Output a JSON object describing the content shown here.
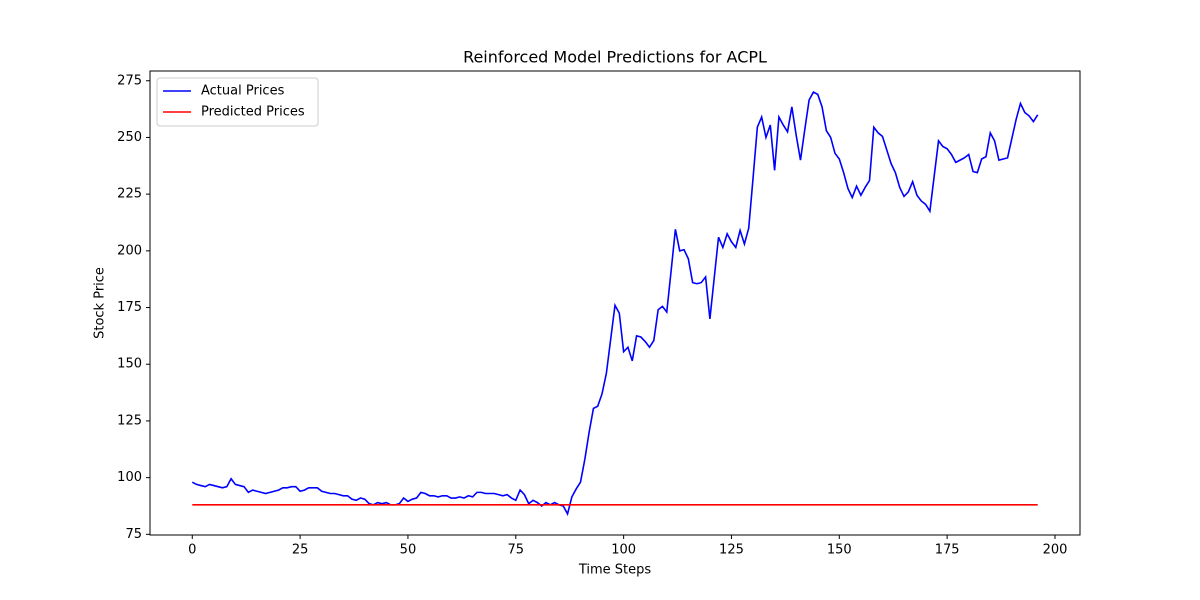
{
  "chart_data": {
    "type": "line",
    "title": "Reinforced Model Predictions for ACPL",
    "x_label": "Time Steps",
    "y_label": "Stock Price",
    "xlim": [
      -9.8,
      205.8
    ],
    "ylim": [
      74.7,
      279.3
    ],
    "xticks": [
      0,
      25,
      50,
      75,
      100,
      125,
      150,
      175,
      200
    ],
    "yticks": [
      75,
      100,
      125,
      150,
      175,
      200,
      225,
      250,
      275
    ],
    "grid": false,
    "legend": "upper left",
    "x": [
      0,
      1,
      2,
      3,
      4,
      5,
      6,
      7,
      8,
      9,
      10,
      11,
      12,
      13,
      14,
      15,
      16,
      17,
      18,
      19,
      20,
      21,
      22,
      23,
      24,
      25,
      26,
      27,
      28,
      29,
      30,
      31,
      32,
      33,
      34,
      35,
      36,
      37,
      38,
      39,
      40,
      41,
      42,
      43,
      44,
      45,
      46,
      47,
      48,
      49,
      50,
      51,
      52,
      53,
      54,
      55,
      56,
      57,
      58,
      59,
      60,
      61,
      62,
      63,
      64,
      65,
      66,
      67,
      68,
      69,
      70,
      71,
      72,
      73,
      74,
      75,
      76,
      77,
      78,
      79,
      80,
      81,
      82,
      83,
      84,
      85,
      86,
      87,
      88,
      89,
      90,
      91,
      92,
      93,
      94,
      95,
      96,
      97,
      98,
      99,
      100,
      101,
      102,
      103,
      104,
      105,
      106,
      107,
      108,
      109,
      110,
      111,
      112,
      113,
      114,
      115,
      116,
      117,
      118,
      119,
      120,
      121,
      122,
      123,
      124,
      125,
      126,
      127,
      128,
      129,
      130,
      131,
      132,
      133,
      134,
      135,
      136,
      137,
      138,
      139,
      140,
      141,
      142,
      143,
      144,
      145,
      146,
      147,
      148,
      149,
      150,
      151,
      152,
      153,
      154,
      155,
      156,
      157,
      158,
      159,
      160,
      161,
      162,
      163,
      164,
      165,
      166,
      167,
      168,
      169,
      170,
      171,
      172,
      173,
      174,
      175,
      176,
      177,
      178,
      179,
      180,
      181,
      182,
      183,
      184,
      185,
      186,
      187,
      188,
      189,
      190,
      191,
      192,
      193,
      194,
      195,
      196
    ],
    "series": [
      {
        "name": "Actual Prices",
        "color": "#0000ff",
        "values": [
          98,
          97,
          96.5,
          96,
          97,
          96.5,
          96,
          95.5,
          96,
          99.5,
          97,
          96.5,
          96,
          93.5,
          94.5,
          94,
          93.5,
          93,
          93.5,
          94,
          94.5,
          95.5,
          95.5,
          96,
          96,
          94,
          94.5,
          95.5,
          95.5,
          95.5,
          94,
          93.5,
          93,
          93,
          92.5,
          92,
          92,
          90.5,
          90,
          91,
          90.5,
          88.5,
          88,
          89,
          88.5,
          89,
          88,
          88,
          88.5,
          91,
          89.5,
          90.5,
          91,
          93.5,
          93,
          92,
          92,
          91.5,
          92,
          92,
          91,
          91,
          91.5,
          91,
          92,
          91.5,
          93.5,
          93.5,
          93,
          93,
          93,
          92.5,
          92,
          92.5,
          91,
          90,
          94.5,
          92.5,
          88.5,
          90,
          89,
          87.5,
          89,
          88,
          89,
          88,
          87.5,
          84,
          91.5,
          95,
          98,
          108,
          120,
          130.5,
          131.5,
          137,
          146,
          161,
          176,
          172.5,
          155.5,
          157.5,
          151.5,
          162.5,
          162,
          160,
          157.5,
          160.5,
          174,
          175.5,
          173,
          191,
          209.5,
          200,
          200.5,
          196.5,
          186,
          185.5,
          186,
          188.5,
          170,
          188,
          206,
          201.5,
          207.5,
          204,
          201.5,
          209,
          203,
          210,
          232,
          254.5,
          259,
          250,
          255.5,
          235.5,
          259,
          255.5,
          252.5,
          263.5,
          251,
          240,
          253.5,
          266.5,
          270,
          269,
          263.5,
          253,
          250,
          243,
          240.5,
          234.5,
          227.5,
          223.5,
          228.5,
          224.5,
          228,
          231,
          254.5,
          252,
          250.5,
          244.5,
          238.5,
          234.5,
          228,
          224,
          226,
          230.5,
          224.5,
          222,
          220.5,
          217.5,
          233,
          248.5,
          246,
          245,
          242.5,
          239,
          240,
          241,
          242.5,
          235,
          234.5,
          240.5,
          241.5,
          252,
          248.5,
          240,
          240.5,
          241,
          249.5,
          258,
          265,
          261,
          259.5,
          257,
          260
        ]
      },
      {
        "name": "Predicted Prices",
        "color": "#ff0000",
        "values": [
          88,
          88,
          88,
          88,
          88,
          88,
          88,
          88,
          88,
          88,
          88,
          88,
          88,
          88,
          88,
          88,
          88,
          88,
          88,
          88,
          88,
          88,
          88,
          88,
          88,
          88,
          88,
          88,
          88,
          88,
          88,
          88,
          88,
          88,
          88,
          88,
          88,
          88,
          88,
          88,
          88,
          88,
          88,
          88,
          88,
          88,
          88,
          88,
          88,
          88,
          88,
          88,
          88,
          88,
          88,
          88,
          88,
          88,
          88,
          88,
          88,
          88,
          88,
          88,
          88,
          88,
          88,
          88,
          88,
          88,
          88,
          88,
          88,
          88,
          88,
          88,
          88,
          88,
          88,
          88,
          88,
          88,
          88,
          88,
          88,
          88,
          88,
          88,
          88,
          88,
          88,
          88,
          88,
          88,
          88,
          88,
          88,
          88,
          88,
          88,
          88,
          88,
          88,
          88,
          88,
          88,
          88,
          88,
          88,
          88,
          88,
          88,
          88,
          88,
          88,
          88,
          88,
          88,
          88,
          88,
          88,
          88,
          88,
          88,
          88,
          88,
          88,
          88,
          88,
          88,
          88,
          88,
          88,
          88,
          88,
          88,
          88,
          88,
          88,
          88,
          88,
          88,
          88,
          88,
          88,
          88,
          88,
          88,
          88,
          88,
          88,
          88,
          88,
          88,
          88,
          88,
          88,
          88,
          88,
          88,
          88,
          88,
          88,
          88,
          88,
          88,
          88,
          88,
          88,
          88,
          88,
          88,
          88,
          88,
          88,
          88,
          88,
          88,
          88,
          88,
          88,
          88,
          88,
          88,
          88,
          88,
          88,
          88,
          88,
          88,
          88,
          88,
          88,
          88,
          88,
          88,
          88
        ]
      }
    ]
  }
}
